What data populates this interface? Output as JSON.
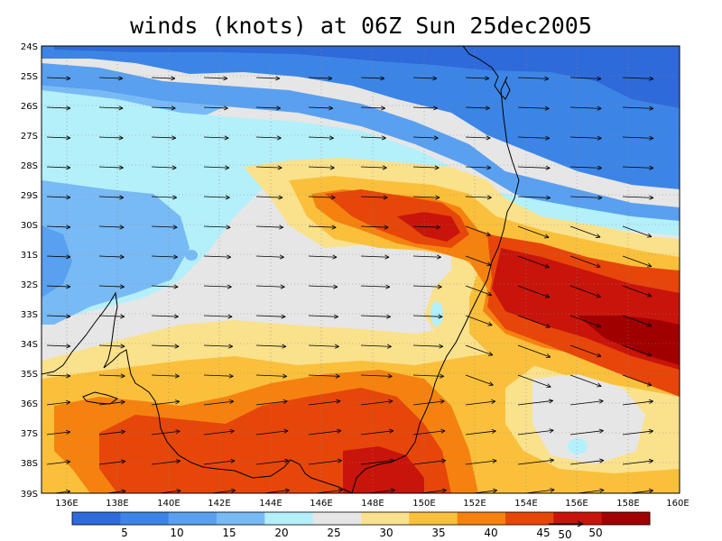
{
  "title": "winds (knots) at 06Z Sun 25dec2005",
  "map": {
    "lat_labels": [
      "24S",
      "25S",
      "26S",
      "27S",
      "28S",
      "29S",
      "30S",
      "31S",
      "32S",
      "33S",
      "34S",
      "35S",
      "36S",
      "37S",
      "38S",
      "39S"
    ],
    "lon_labels": [
      "136E",
      "138E",
      "140E",
      "142E",
      "144E",
      "146E",
      "148E",
      "150E",
      "152E",
      "154E",
      "156E",
      "158E",
      "160E"
    ],
    "grid": "dotted",
    "layers": [
      "wind speed shading",
      "wind vectors",
      "coastline"
    ]
  },
  "colorbar": {
    "labels": [
      "5",
      "10",
      "15",
      "20",
      "25",
      "30",
      "35",
      "40",
      "45",
      "50"
    ],
    "colors": [
      "#2e6ad9",
      "#3c85e6",
      "#5aa0f0",
      "#78baf5",
      "#b4f0fa",
      "#e6e6e6",
      "#fae18c",
      "#fac03c",
      "#f5820f",
      "#e6460a",
      "#c8140a",
      "#a00000"
    ]
  },
  "reference_vector": {
    "label": "50"
  }
}
